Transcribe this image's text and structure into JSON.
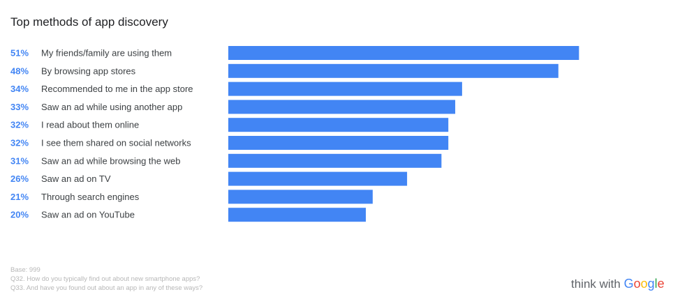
{
  "title": "Top methods of app discovery",
  "chart_data": {
    "type": "bar",
    "orientation": "horizontal",
    "categories": [
      "My friends/family are using them",
      "By browsing app stores",
      "Recommended to me in the app store",
      "Saw an ad while using another app",
      "I read about them online",
      "I see them shared on social networks",
      "Saw an ad while browsing the web",
      "Saw an ad on TV",
      "Through search engines",
      "Saw an ad on YouTube"
    ],
    "values": [
      51,
      48,
      34,
      33,
      32,
      32,
      31,
      26,
      21,
      20
    ],
    "value_labels": [
      "51%",
      "48%",
      "34%",
      "33%",
      "32%",
      "32%",
      "31%",
      "26%",
      "21%",
      "20%"
    ],
    "bar_color": "#4285f4",
    "value_label_color": "#4285f4",
    "grid": false
  },
  "footnotes": [
    "Base: 999",
    "Q32. How do you typically find out about new smartphone apps?",
    "Q33. And have you found out about an app in any of these ways?"
  ],
  "brand": {
    "prefix": "think with",
    "name_letters": [
      {
        "ch": "G",
        "color": "#4285f4"
      },
      {
        "ch": "o",
        "color": "#ea4335"
      },
      {
        "ch": "o",
        "color": "#fbbc05"
      },
      {
        "ch": "g",
        "color": "#4285f4"
      },
      {
        "ch": "l",
        "color": "#34a853"
      },
      {
        "ch": "e",
        "color": "#ea4335"
      }
    ]
  }
}
